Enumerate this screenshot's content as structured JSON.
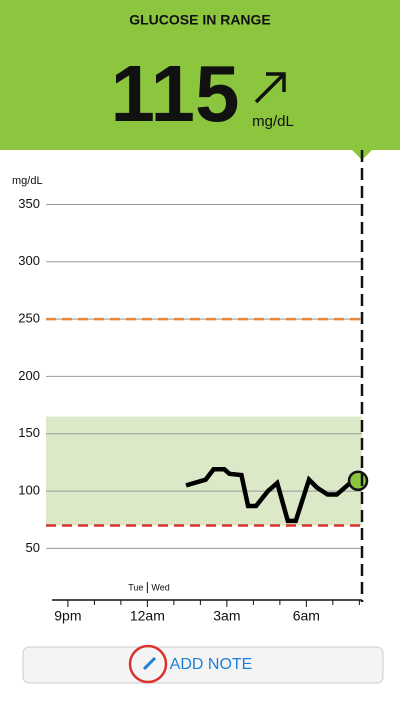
{
  "header": {
    "title": "GLUCOSE IN RANGE",
    "value": "115",
    "unit": "mg/dL"
  },
  "chart_data": {
    "type": "line",
    "y_label": "mg/dL",
    "day_labels": [
      "Tue",
      "Wed"
    ],
    "day_change": 24,
    "x": [
      25.46,
      26.2,
      26.5,
      26.9,
      27.1,
      27.55,
      27.8,
      28.1,
      28.55,
      28.9,
      29.3,
      29.6,
      30.1,
      30.4,
      30.8,
      31.15,
      31.6,
      31.95
    ],
    "values": [
      105,
      110,
      119,
      119,
      115,
      114,
      87,
      87,
      100,
      107,
      74,
      74,
      110,
      103,
      97,
      97,
      106,
      109
    ],
    "color": "#000000",
    "dot_color": "#8cc63f",
    "xlim": [
      20.4,
      32.1
    ],
    "ylim": [
      5,
      360
    ],
    "xticks": [
      {
        "value": 21,
        "label": "9pm"
      },
      {
        "value": 24,
        "label": "12am"
      },
      {
        "value": 27,
        "label": "3am"
      },
      {
        "value": 30,
        "label": "6am"
      }
    ],
    "xminor": [
      22,
      23,
      25,
      26,
      28,
      29,
      31,
      32
    ],
    "yticks": [
      50,
      100,
      150,
      200,
      250,
      300,
      350
    ],
    "grid": true,
    "target_range": [
      70,
      165
    ],
    "target_color": "#dbe9c9",
    "thresholds": [
      {
        "value": 250,
        "color": "#e8873a"
      },
      {
        "value": 70,
        "color": "#d9342b"
      }
    ]
  },
  "button": {
    "label": "ADD NOTE"
  }
}
